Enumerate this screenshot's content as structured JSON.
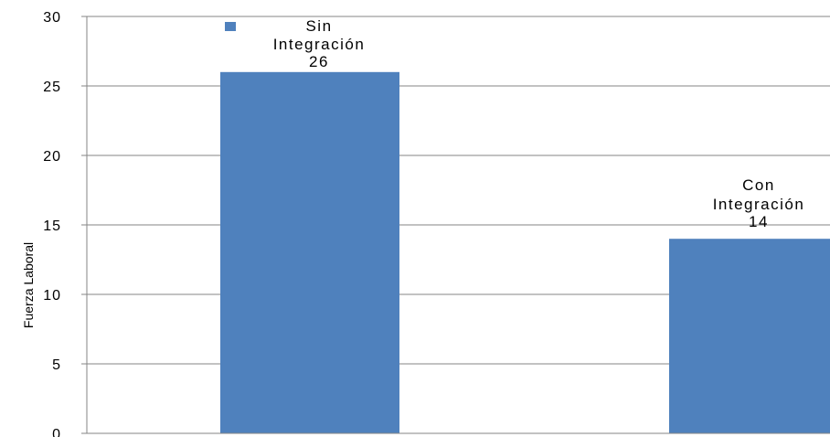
{
  "chart_data": {
    "type": "bar",
    "categories": [
      "Sin Integración",
      "Con Integración"
    ],
    "values": [
      26,
      14
    ],
    "data_labels": [
      {
        "line1": "Sin",
        "line2": "Integración",
        "value": "26"
      },
      {
        "line1": "Con",
        "line2": "Integración",
        "value": "14"
      }
    ],
    "ylabel": "Fuerza Laboral",
    "ylim": [
      0,
      30
    ],
    "yticks": [
      0,
      5,
      10,
      15,
      20,
      25,
      30
    ],
    "grid": true,
    "legend": {
      "placement": "top",
      "entries": []
    },
    "colors": {
      "bar": "#4f81bd",
      "grid": "#868686",
      "axis": "#868686"
    }
  }
}
